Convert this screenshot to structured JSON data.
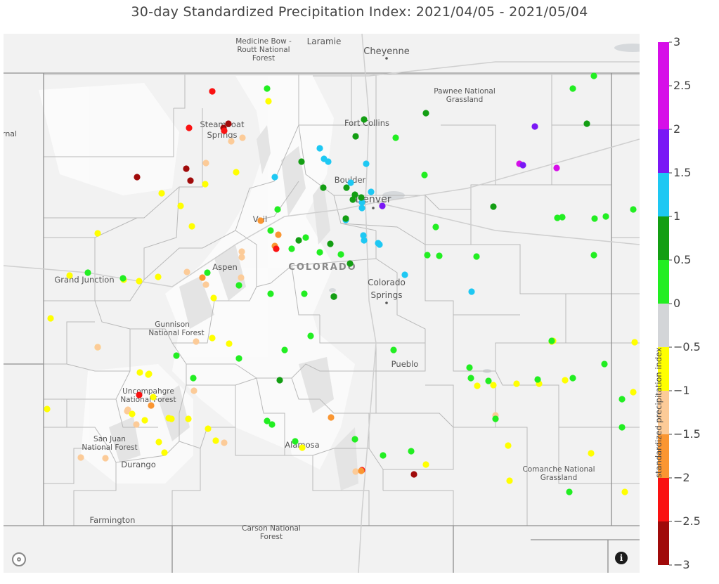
{
  "title": "30-day Standardized Precipitation Index: 2021/04/05 -  2021/05/04",
  "map": {
    "state_label": "COLORADO",
    "places": [
      {
        "name": "Medicine Bow -",
        "type": "area"
      },
      {
        "name": "Routt National",
        "type": "area"
      },
      {
        "name": "Forest",
        "type": "area"
      },
      {
        "name": "Laramie",
        "type": "city"
      },
      {
        "name": "Cheyenne",
        "type": "city"
      },
      {
        "name": "Pawnee National",
        "type": "area"
      },
      {
        "name": "Grassland",
        "type": "area"
      },
      {
        "name": "rnal",
        "type": "city"
      },
      {
        "name": "Steamboat",
        "type": "city"
      },
      {
        "name": "Springs",
        "type": "city"
      },
      {
        "name": "Fort Collins",
        "type": "city"
      },
      {
        "name": "Boulder",
        "type": "city"
      },
      {
        "name": "Denver",
        "type": "city"
      },
      {
        "name": "Vail",
        "type": "city"
      },
      {
        "name": "Aspen",
        "type": "city"
      },
      {
        "name": "Grand Junction",
        "type": "city"
      },
      {
        "name": "Colorado",
        "type": "city"
      },
      {
        "name": "Springs",
        "type": "city"
      },
      {
        "name": "Gunnison",
        "type": "area"
      },
      {
        "name": "National Forest",
        "type": "area"
      },
      {
        "name": "Pueblo",
        "type": "city"
      },
      {
        "name": "Uncompahgre",
        "type": "area"
      },
      {
        "name": "National Forest",
        "type": "area"
      },
      {
        "name": "San Juan",
        "type": "area"
      },
      {
        "name": "National Forest",
        "type": "area"
      },
      {
        "name": "Durango",
        "type": "city"
      },
      {
        "name": "Alamosa",
        "type": "city"
      },
      {
        "name": "Comanche National",
        "type": "area"
      },
      {
        "name": "Grassland",
        "type": "area"
      },
      {
        "name": "Farmington",
        "type": "city"
      },
      {
        "name": "Carson National",
        "type": "area"
      },
      {
        "name": "Forest",
        "type": "area"
      }
    ],
    "stations": [
      {
        "spi": -2.1
      },
      {
        "spi": -2.6
      },
      {
        "spi": -2.6
      },
      {
        "spi": -2.1
      },
      {
        "spi": -2.1
      },
      {
        "spi": -1.2
      },
      {
        "spi": -0.8
      },
      {
        "spi": -1.2
      },
      {
        "spi": -1.2
      },
      {
        "spi": -0.8
      },
      {
        "spi": -2.6
      },
      {
        "spi": -2.6
      },
      {
        "spi": -2.6
      },
      {
        "spi": -0.6
      },
      {
        "spi": -0.8
      },
      {
        "spi": -0.8
      },
      {
        "spi": -0.6
      },
      {
        "spi": -0.8
      },
      {
        "spi": -1.9
      },
      {
        "spi": -1.9
      },
      {
        "spi": -1.9
      },
      {
        "spi": -2.1
      },
      {
        "spi": -1.2
      },
      {
        "spi": -1.2
      },
      {
        "spi": -1.2
      },
      {
        "spi": -1.2
      },
      {
        "spi": -1.9
      },
      {
        "spi": -1.2
      },
      {
        "spi": -0.6
      },
      {
        "spi": -0.6
      },
      {
        "spi": -0.8
      },
      {
        "spi": -0.6
      },
      {
        "spi": -0.6
      },
      {
        "spi": -0.6
      },
      {
        "spi": -0.8
      },
      {
        "spi": -1.2
      },
      {
        "spi": -0.8
      },
      {
        "spi": -0.6
      },
      {
        "spi": -0.6
      },
      {
        "spi": -0.8
      },
      {
        "spi": -1.2
      },
      {
        "spi": -0.8
      },
      {
        "spi": -2.1
      },
      {
        "spi": -1.9
      },
      {
        "spi": -1.2
      },
      {
        "spi": -0.8
      },
      {
        "spi": -1.2
      },
      {
        "spi": -0.6
      },
      {
        "spi": -0.6
      },
      {
        "spi": -0.6
      },
      {
        "spi": -0.8
      },
      {
        "spi": -1.2
      },
      {
        "spi": -1.2
      },
      {
        "spi": -1.2
      },
      {
        "spi": -0.8
      },
      {
        "spi": -0.6
      },
      {
        "spi": -0.8
      },
      {
        "spi": -0.6
      },
      {
        "spi": -0.8
      },
      {
        "spi": -0.8
      },
      {
        "spi": -1.2
      },
      {
        "spi": -2.1
      },
      {
        "spi": -1.2
      },
      {
        "spi": -2.6
      },
      {
        "spi": -0.6
      },
      {
        "spi": -1.2
      },
      {
        "spi": -1.9
      },
      {
        "spi": -1.9
      },
      {
        "spi": -0.8
      },
      {
        "spi": -0.8
      },
      {
        "spi": -0.8
      },
      {
        "spi": -0.8
      },
      {
        "spi": -0.8
      },
      {
        "spi": -0.8
      },
      {
        "spi": -0.8
      },
      {
        "spi": -1.2
      },
      {
        "spi": -0.8
      },
      {
        "spi": -0.8
      },
      {
        "spi": -0.8
      },
      {
        "spi": -0.6
      },
      {
        "spi": -0.6
      },
      {
        "spi": -0.8
      },
      {
        "spi": -0.6
      },
      {
        "spi": 0.8
      },
      {
        "spi": 1.2
      },
      {
        "spi": 1.2
      },
      {
        "spi": 0.8
      },
      {
        "spi": 1.2
      },
      {
        "spi": 0.8
      },
      {
        "spi": 1.2
      },
      {
        "spi": 0.8
      },
      {
        "spi": 0.8
      },
      {
        "spi": 1.2
      },
      {
        "spi": 1.2
      },
      {
        "spi": 0.8
      },
      {
        "spi": 1.2
      },
      {
        "spi": 1.2
      },
      {
        "spi": 1.2
      },
      {
        "spi": 1.8
      },
      {
        "spi": 0.8
      },
      {
        "spi": 0.8
      },
      {
        "spi": 1.2
      },
      {
        "spi": 1.2
      },
      {
        "spi": 1.2
      },
      {
        "spi": 0.8
      },
      {
        "spi": 1.2
      },
      {
        "spi": 0.8
      },
      {
        "spi": 0.8
      },
      {
        "spi": 0.8
      },
      {
        "spi": 0.8
      },
      {
        "spi": 0.8
      },
      {
        "spi": 0.8
      },
      {
        "spi": 1.2
      },
      {
        "spi": 1.2
      },
      {
        "spi": 0.8
      },
      {
        "spi": 1.8
      },
      {
        "spi": 2.2
      },
      {
        "spi": 1.8
      },
      {
        "spi": 2.2
      },
      {
        "spi": 0.8
      },
      {
        "spi": 1.2
      },
      {
        "spi": 0.8
      },
      {
        "spi": 0.8
      },
      {
        "spi": 0.8
      },
      {
        "spi": 0.1
      },
      {
        "spi": 0.1
      },
      {
        "spi": 0.1
      },
      {
        "spi": 0.1
      },
      {
        "spi": 0.1
      },
      {
        "spi": 0.1
      },
      {
        "spi": 0.1
      },
      {
        "spi": 0.1
      },
      {
        "spi": 0.1
      },
      {
        "spi": 0.1
      },
      {
        "spi": 0.1
      },
      {
        "spi": 0.1
      },
      {
        "spi": 0.1
      },
      {
        "spi": 0.1
      },
      {
        "spi": 0.1
      },
      {
        "spi": 0.1
      },
      {
        "spi": 0.1
      },
      {
        "spi": 0.1
      },
      {
        "spi": 0.1
      },
      {
        "spi": 0.1
      },
      {
        "spi": 0.1
      },
      {
        "spi": 0.1
      },
      {
        "spi": 0.1
      },
      {
        "spi": 0.1
      },
      {
        "spi": 0.1
      },
      {
        "spi": 0.1
      },
      {
        "spi": 0.1
      },
      {
        "spi": 0.1
      },
      {
        "spi": 0.1
      },
      {
        "spi": 0.1
      },
      {
        "spi": 0.1
      },
      {
        "spi": 0.1
      },
      {
        "spi": 0.1
      },
      {
        "spi": 0.1
      },
      {
        "spi": 0.1
      },
      {
        "spi": 0.1
      },
      {
        "spi": 0.1
      },
      {
        "spi": 0.1
      },
      {
        "spi": 0.1
      },
      {
        "spi": 0.1
      },
      {
        "spi": 0.1
      },
      {
        "spi": 0.1
      },
      {
        "spi": 0.1
      },
      {
        "spi": 0.1
      },
      {
        "spi": 0.1
      },
      {
        "spi": 0.1
      },
      {
        "spi": 0.1
      },
      {
        "spi": 0.1
      },
      {
        "spi": 0.1
      },
      {
        "spi": 0.1
      }
    ]
  },
  "colorbar": {
    "title": "standardized precipitation index",
    "range": [
      -3,
      3
    ],
    "ticks": [
      "3",
      "2.5",
      "2",
      "1.5",
      "1",
      "0.5",
      "0",
      "−0.5",
      "−1",
      "−1.5",
      "−2",
      "−2.5",
      "−3"
    ],
    "bins": [
      {
        "from": 2,
        "to": 3,
        "color": "#d60fe8"
      },
      {
        "from": 1.5,
        "to": 2,
        "color": "#7a18f5"
      },
      {
        "from": 1,
        "to": 1.5,
        "color": "#1ec8f3"
      },
      {
        "from": 0.5,
        "to": 1,
        "color": "#139e13"
      },
      {
        "from": 0,
        "to": 0.5,
        "color": "#22ee22"
      },
      {
        "from": -0.5,
        "to": 0,
        "color": "#d3d5d8"
      },
      {
        "from": -1,
        "to": -0.5,
        "color": "#ffff00"
      },
      {
        "from": -1.5,
        "to": -1,
        "color": "#fccb98"
      },
      {
        "from": -2,
        "to": -1.5,
        "color": "#fa9632"
      },
      {
        "from": -2.5,
        "to": -2,
        "color": "#fa1212"
      },
      {
        "from": -3,
        "to": -2.5,
        "color": "#a00a0a"
      }
    ]
  },
  "controls": {
    "info_icon": "info-icon",
    "logo_icon": "map-logo-icon",
    "info_glyph": "i"
  }
}
